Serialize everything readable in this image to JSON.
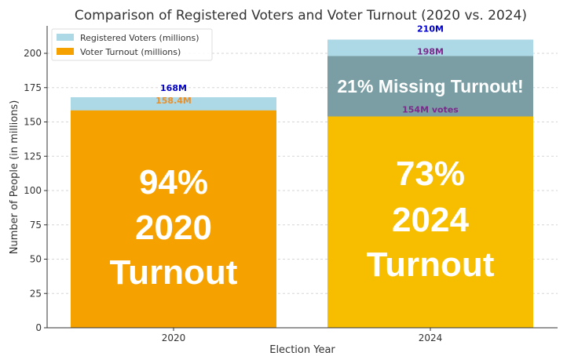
{
  "chart_data": {
    "type": "bar",
    "title": "Comparison of Registered Voters and Voter Turnout (2020 vs. 2024)",
    "xlabel": "Election Year",
    "ylabel": "Number of People (in millions)",
    "categories": [
      "2020",
      "2024"
    ],
    "ylim": [
      0,
      220
    ],
    "yticks": [
      0,
      25,
      50,
      75,
      100,
      125,
      150,
      175,
      200
    ],
    "grid": "horizontal dashed",
    "legend_position": "top-left",
    "series": [
      {
        "name": "Registered Voters (millions)",
        "color": "#ADD8E6",
        "values": [
          168,
          210
        ]
      },
      {
        "name": "Voter Turnout (millions)",
        "color": "#F5A100",
        "values": [
          158.4,
          154
        ]
      }
    ],
    "bar_colors": {
      "turnout_2020": "#F5A100",
      "turnout_2024": "#F7BE00",
      "missing_overlay": "#7A9EA3"
    },
    "missing_overlay": {
      "category": "2024",
      "from": 154,
      "to": 198,
      "text": "21% Missing Turnout!"
    },
    "value_labels": {
      "registered": [
        "168M",
        "210M"
      ],
      "registered_color": "#0000C8",
      "turnout_2020": "158.4M",
      "turnout_2020_color": "#E8902A",
      "overlay_top_2024": "198M",
      "votes_2024": "154M votes",
      "purple_color": "#7B2A8C"
    },
    "bar_text": [
      [
        "94%",
        "2020",
        "Turnout"
      ],
      [
        "73%",
        "2024",
        "Turnout"
      ]
    ]
  }
}
